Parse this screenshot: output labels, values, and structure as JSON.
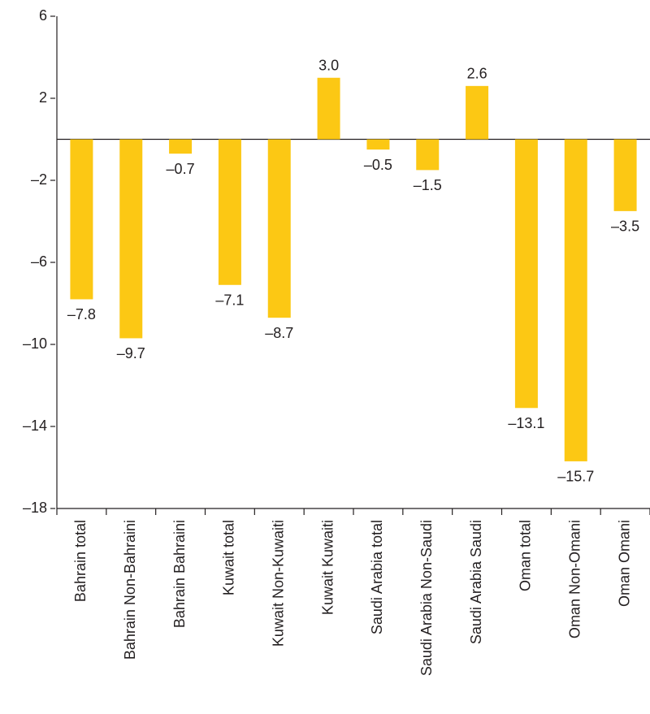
{
  "chart_data": {
    "type": "bar",
    "categories": [
      "Bahrain total",
      "Bahrain Non-Bahraini",
      "Bahrain Bahraini",
      "Kuwait total",
      "Kuwait Non-Kuwaiti",
      "Kuwait Kuwaiti",
      "Saudi Arabia total",
      "Saudi Arabia Non-Saudi",
      "Saudi Arabia Saudi",
      "Oman total",
      "Oman Non-Omani",
      "Oman Omani"
    ],
    "values": [
      -7.8,
      -9.7,
      -0.7,
      -7.1,
      -8.7,
      3.0,
      -0.5,
      -1.5,
      2.6,
      -13.1,
      -15.7,
      -3.5
    ],
    "value_labels": [
      "–7.8",
      "–9.7",
      "–0.7",
      "–7.1",
      "–8.7",
      "3.0",
      "–0.5",
      "–1.5",
      "2.6",
      "–13.1",
      "–15.7",
      "–3.5"
    ],
    "color": "#fcc814",
    "ylim": [
      -18,
      6
    ],
    "yticks": [
      6,
      2,
      {
        "value": -2,
        "label": "–2"
      },
      {
        "value": -6,
        "label": "–6"
      },
      {
        "value": -10,
        "label": "–10"
      },
      {
        "value": -14,
        "label": "–14"
      },
      {
        "value": -18,
        "label": "–18"
      }
    ],
    "grid": false
  }
}
